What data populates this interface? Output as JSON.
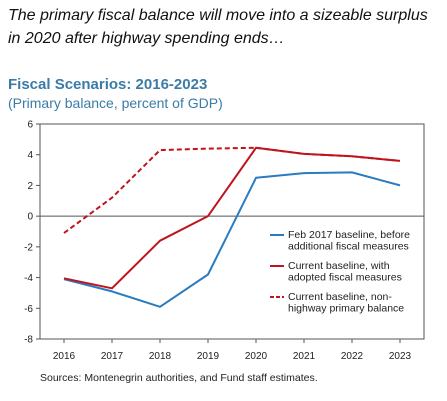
{
  "caption": "The primary fiscal balance will move into a sizeable surplus in 2020 after highway spending ends…",
  "source": "Sources: Montenegrin authorities, and Fund staff estimates.",
  "chart_data": {
    "type": "line",
    "title": "Fiscal Scenarios: 2016-2023",
    "subtitle": "(Primary balance, percent of GDP)",
    "x": [
      2016,
      2017,
      2018,
      2019,
      2020,
      2021,
      2022,
      2023
    ],
    "ylim": [
      -8,
      6
    ],
    "yticks": [
      -8,
      -6,
      -4,
      -2,
      0,
      2,
      4,
      6
    ],
    "legend_position": "right",
    "series": [
      {
        "name_lines": [
          "Feb 2017 baseline, before",
          "additional fiscal measures"
        ],
        "color": "#2a7bbf",
        "style": "solid",
        "values": [
          -4.1,
          -4.9,
          -5.9,
          -3.8,
          2.5,
          2.8,
          2.85,
          2.0
        ]
      },
      {
        "name_lines": [
          "Current baseline, with",
          "adopted fiscal measures"
        ],
        "color": "#c0141c",
        "style": "solid",
        "values": [
          -4.05,
          -4.7,
          -1.6,
          0.0,
          4.45,
          4.05,
          3.9,
          3.6
        ]
      },
      {
        "name_lines": [
          "Current baseline, non-",
          "highway primary balance"
        ],
        "color": "#c0141c",
        "style": "dashed",
        "values": [
          -1.1,
          1.2,
          4.3,
          4.4,
          4.45,
          4.05,
          3.9,
          3.6
        ]
      }
    ]
  }
}
